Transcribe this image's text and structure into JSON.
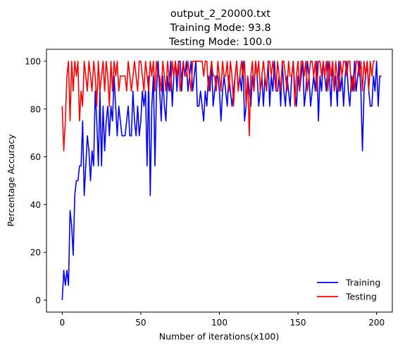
{
  "chart_data": {
    "type": "line",
    "title_lines": [
      "output_2_20000.txt",
      "Training Mode: 93.8",
      "Testing Mode: 100.0"
    ],
    "xlabel": "Number of iterations(x100)",
    "ylabel": "Percentage Accuracy",
    "xlim": [
      -10,
      210
    ],
    "ylim": [
      -5,
      105
    ],
    "xticks": [
      0,
      50,
      100,
      150,
      200
    ],
    "yticks": [
      0,
      20,
      40,
      60,
      80,
      100
    ],
    "grid": false,
    "legend_position": "lower-right",
    "series": [
      {
        "name": "Training",
        "color": "#0000ff",
        "values": [
          0,
          12.5,
          6.2,
          12.5,
          6.2,
          37.5,
          31.2,
          18.8,
          43.8,
          50,
          50,
          56.2,
          56.2,
          75,
          43.8,
          56.2,
          68.8,
          62.5,
          50,
          62.5,
          56.2,
          87.5,
          75,
          56.2,
          87.5,
          56.2,
          81.2,
          62.5,
          75,
          81.2,
          68.8,
          81.2,
          75,
          93.8,
          81.2,
          68.8,
          81.2,
          75,
          68.8,
          68.8,
          68.8,
          75,
          81.2,
          68.8,
          68.8,
          87.5,
          75,
          68.8,
          81.2,
          68.8,
          75,
          87.5,
          81.2,
          87.5,
          56.2,
          93.8,
          43.8,
          81.2,
          93.8,
          56.2,
          87.5,
          100,
          87.5,
          75,
          93.8,
          81.2,
          75,
          93.8,
          87.5,
          100,
          81.2,
          93.8,
          100,
          87.5,
          100,
          100,
          87.5,
          100,
          93.8,
          100,
          87.5,
          93.8,
          100,
          87.5,
          93.8,
          100,
          81.2,
          81.2,
          87.5,
          81.2,
          75,
          87.5,
          81.2,
          93.8,
          87.5,
          100,
          81.2,
          87.5,
          93.8,
          93.8,
          87.5,
          75,
          87.5,
          93.8,
          87.5,
          81.2,
          93.8,
          87.5,
          81.2,
          87.5,
          93.8,
          100,
          87.5,
          93.8,
          87.5,
          100,
          75,
          81.2,
          93.8,
          87.5,
          81.2,
          93.8,
          87.5,
          100,
          93.8,
          81.2,
          87.5,
          93.8,
          81.2,
          93.8,
          87.5,
          100,
          81.2,
          93.8,
          87.5,
          100,
          87.5,
          87.5,
          93.8,
          81.2,
          100,
          87.5,
          81.2,
          93.8,
          87.5,
          81.2,
          93.8,
          100,
          87.5,
          81.2,
          93.8,
          87.5,
          93.8,
          100,
          81.2,
          87.5,
          100,
          93.8,
          81.2,
          87.5,
          93.8,
          87.5,
          100,
          75,
          93.8,
          87.5,
          100,
          93.8,
          87.5,
          100,
          93.8,
          81.2,
          100,
          87.5,
          93.8,
          81.2,
          100,
          87.5,
          93.8,
          81.2,
          93.8,
          100,
          87.5,
          81.2,
          93.8,
          87.5,
          100,
          87.5,
          93.8,
          100,
          87.5,
          62.5,
          87.5,
          93.8,
          100,
          87.5,
          81.2,
          81.2,
          93.8,
          87.5,
          100,
          81.2,
          93.8,
          93.8
        ],
        "final_value": 93.8
      },
      {
        "name": "Testing",
        "color": "#ff0000",
        "values": [
          81.2,
          62.5,
          75,
          93.8,
          100,
          75,
          100,
          87.5,
          100,
          93.8,
          100,
          75,
          87.5,
          81.2,
          100,
          93.8,
          87.5,
          100,
          93.8,
          87.5,
          100,
          93.8,
          81.2,
          100,
          87.5,
          93.8,
          100,
          87.5,
          100,
          93.8,
          81.2,
          100,
          87.5,
          100,
          93.8,
          100,
          87.5,
          93.8,
          93.8,
          93.8,
          93.8,
          87.5,
          100,
          93.8,
          87.5,
          93.8,
          100,
          93.8,
          87.5,
          100,
          100,
          93.8,
          87.5,
          100,
          93.8,
          87.5,
          100,
          93.8,
          100,
          87.5,
          100,
          93.8,
          93.8,
          87.5,
          100,
          93.8,
          87.5,
          100,
          93.8,
          87.5,
          100,
          93.8,
          100,
          93.8,
          100,
          87.5,
          93.8,
          100,
          93.8,
          93.8,
          100,
          93.8,
          87.5,
          100,
          100,
          100,
          100,
          100,
          100,
          100,
          93.8,
          100,
          100,
          87.5,
          93.8,
          100,
          93.8,
          93.8,
          87.5,
          100,
          93.8,
          87.5,
          100,
          93.8,
          93.8,
          100,
          87.5,
          100,
          93.8,
          81.2,
          93.8,
          100,
          87.5,
          93.8,
          100,
          93.8,
          100,
          81.2,
          93.8,
          68.8,
          93.8,
          100,
          87.5,
          100,
          93.8,
          100,
          87.5,
          93.8,
          100,
          93.8,
          87.5,
          100,
          100,
          93.8,
          100,
          93.8,
          87.5,
          100,
          93.8,
          87.5,
          100,
          100,
          93.8,
          87.5,
          100,
          93.8,
          93.8,
          100,
          81.2,
          93.8,
          100,
          87.5,
          100,
          100,
          93.8,
          100,
          87.5,
          93.8,
          100,
          100,
          93.8,
          100,
          87.5,
          100,
          100,
          93.8,
          100,
          93.8,
          100,
          87.5,
          100,
          93.8,
          100,
          87.5,
          100,
          93.8,
          87.5,
          100,
          93.8,
          100,
          100,
          93.8,
          100,
          100,
          87.5,
          93.8,
          87.5,
          100,
          100,
          93.8,
          100,
          87.5,
          100,
          93.8,
          100,
          87.5,
          100,
          93.8,
          100,
          100
        ],
        "final_value": 100.0
      }
    ]
  }
}
